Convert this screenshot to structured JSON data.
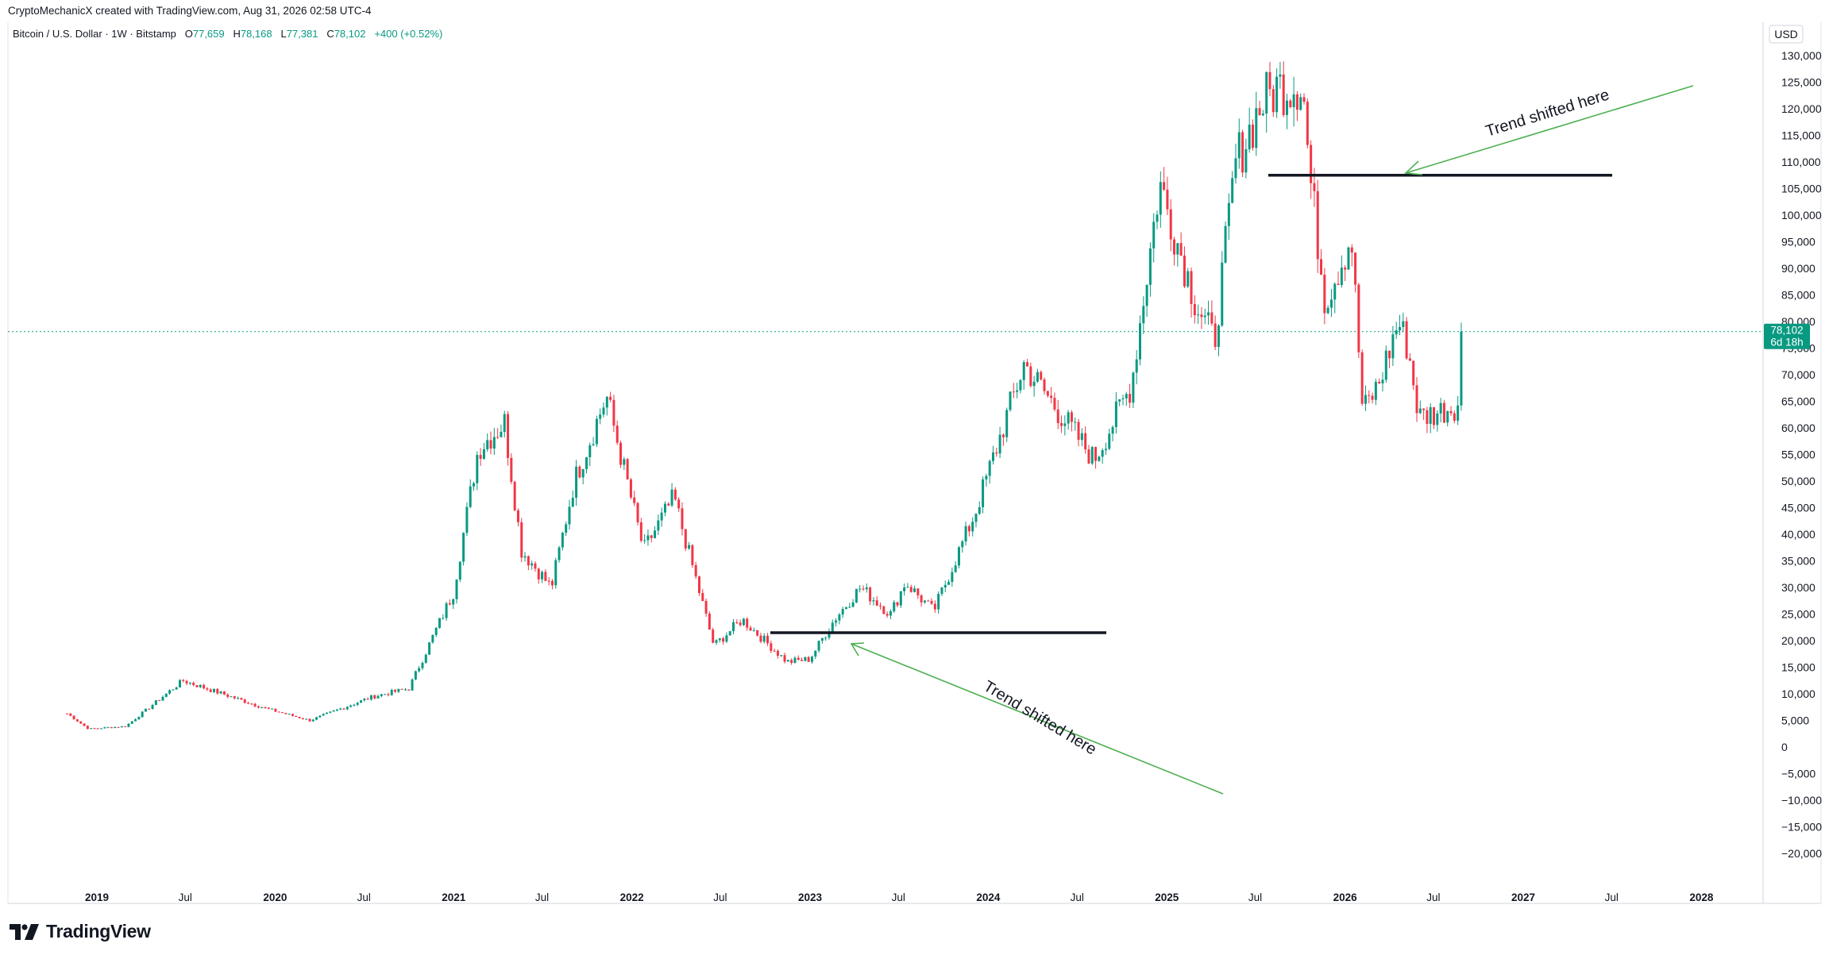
{
  "header": {
    "author_line": "CryptoMechanicX created with TradingView.com, Aug 31, 2026 02:58 UTC-4"
  },
  "symbol": {
    "name": "Bitcoin / U.S. Dollar · 1W · Bitstamp",
    "o_label": "O",
    "o_value": "77,659",
    "h_label": "H",
    "h_value": "78,168",
    "l_label": "L",
    "l_value": "77,381",
    "c_label": "C",
    "c_value": "78,102",
    "change": "+400 (+0.52%)"
  },
  "price_axis": {
    "currency": "USD",
    "ticks": [
      "130,000",
      "125,000",
      "120,000",
      "115,000",
      "110,000",
      "105,000",
      "100,000",
      "95,000",
      "90,000",
      "85,000",
      "80,000",
      "75,000",
      "70,000",
      "65,000",
      "60,000",
      "55,000",
      "50,000",
      "45,000",
      "40,000",
      "35,000",
      "30,000",
      "25,000",
      "20,000",
      "15,000",
      "10,000",
      "5,000",
      "0",
      "−5,000",
      "−10,000",
      "−15,000",
      "−20,000"
    ],
    "last_price": "78,102",
    "countdown": "6d 18h"
  },
  "time_axis": {
    "ticks": [
      {
        "label": "2019",
        "year": true
      },
      {
        "label": "Jul",
        "year": false
      },
      {
        "label": "2020",
        "year": true
      },
      {
        "label": "Jul",
        "year": false
      },
      {
        "label": "2021",
        "year": true
      },
      {
        "label": "Jul",
        "year": false
      },
      {
        "label": "2022",
        "year": true
      },
      {
        "label": "Jul",
        "year": false
      },
      {
        "label": "2023",
        "year": true
      },
      {
        "label": "Jul",
        "year": false
      },
      {
        "label": "2024",
        "year": true
      },
      {
        "label": "Jul",
        "year": false
      },
      {
        "label": "2025",
        "year": true
      },
      {
        "label": "Jul",
        "year": false
      },
      {
        "label": "2026",
        "year": true
      },
      {
        "label": "Jul",
        "year": false
      },
      {
        "label": "2027",
        "year": true
      },
      {
        "label": "Jul",
        "year": false
      },
      {
        "label": "2028",
        "year": true
      }
    ]
  },
  "annotations": {
    "top_label": "Trend shifted here",
    "bottom_label": "Trend shifted here",
    "top_level": 107500,
    "bottom_level": 21500
  },
  "brand": {
    "name": "TradingView",
    "icon": "tradingview-logo-icon"
  },
  "colors": {
    "up": "#089981",
    "down": "#f23645",
    "arrow": "#4caf50",
    "level_line": "#131722",
    "last_price_bg": "#089981"
  },
  "chart_data": {
    "type": "candlestick",
    "title": "Bitcoin / U.S. Dollar · 1W · Bitstamp",
    "ylim": [
      -24000,
      132000
    ],
    "y_scale": "linear",
    "grid": false,
    "anchors": [
      [
        "2018-11-01",
        6300
      ],
      [
        "2018-12-15",
        3400
      ],
      [
        "2019-03-01",
        3900
      ],
      [
        "2019-06-26",
        12500
      ],
      [
        "2019-12-15",
        7200
      ],
      [
        "2020-03-12",
        5000
      ],
      [
        "2020-07-20",
        9500
      ],
      [
        "2020-10-01",
        11000
      ],
      [
        "2020-12-31",
        29000
      ],
      [
        "2021-02-20",
        56000
      ],
      [
        "2021-04-15",
        61000
      ],
      [
        "2021-05-20",
        37000
      ],
      [
        "2021-07-20",
        30000
      ],
      [
        "2021-09-05",
        50000
      ],
      [
        "2021-11-10",
        66000
      ],
      [
        "2022-01-25",
        37000
      ],
      [
        "2022-03-28",
        47000
      ],
      [
        "2022-06-18",
        19000
      ],
      [
        "2022-08-15",
        24000
      ],
      [
        "2022-11-15",
        16000
      ],
      [
        "2022-12-31",
        16500
      ],
      [
        "2023-02-20",
        24000
      ],
      [
        "2023-04-14",
        30000
      ],
      [
        "2023-06-15",
        25000
      ],
      [
        "2023-07-15",
        31000
      ],
      [
        "2023-09-11",
        25500
      ],
      [
        "2023-12-05",
        44000
      ],
      [
        "2024-03-14",
        72000
      ],
      [
        "2024-08-05",
        54000
      ],
      [
        "2024-10-20",
        68000
      ],
      [
        "2024-12-17",
        106000
      ],
      [
        "2025-02-28",
        84000
      ],
      [
        "2025-04-08",
        76000
      ],
      [
        "2025-05-22",
        110000
      ],
      [
        "2025-07-14",
        121000
      ],
      [
        "2025-08-14",
        124000
      ],
      [
        "2025-10-06",
        125000
      ],
      [
        "2025-10-20",
        108000
      ],
      [
        "2025-11-21",
        84000
      ],
      [
        "2026-01-14",
        96000
      ],
      [
        "2026-02-06",
        63000
      ],
      [
        "2026-03-10",
        68000
      ],
      [
        "2026-04-20",
        80000
      ],
      [
        "2026-05-10",
        75000
      ],
      [
        "2026-06-01",
        62000
      ],
      [
        "2026-07-10",
        63000
      ],
      [
        "2026-08-20",
        64500
      ],
      [
        "2026-08-24",
        78000
      ],
      [
        "2026-08-31",
        78102
      ]
    ]
  }
}
